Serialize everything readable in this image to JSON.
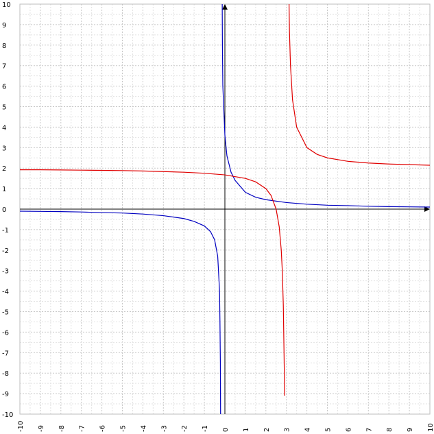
{
  "chart_data": {
    "type": "line",
    "title": "",
    "xlabel": "",
    "ylabel": "",
    "xlim": [
      -10,
      10
    ],
    "ylim": [
      -10,
      10
    ],
    "grid": true,
    "x_ticks": [
      -10,
      -9,
      -8,
      -7,
      -6,
      -5,
      -4,
      -3,
      -2,
      -1,
      0,
      1,
      2,
      3,
      4,
      5,
      6,
      7,
      8,
      9,
      10
    ],
    "y_ticks": [
      -10,
      -9,
      -8,
      -7,
      -6,
      -5,
      -4,
      -3,
      -2,
      -1,
      0,
      1,
      2,
      3,
      4,
      5,
      6,
      7,
      8,
      9,
      10
    ],
    "x_tick_labels": [
      "-10",
      "-9",
      "-8",
      "-7",
      "-6",
      "-5",
      "-4",
      "-3",
      "-2",
      "-1",
      "0",
      "1",
      "2",
      "3",
      "4",
      "5",
      "6",
      "7",
      "8",
      "9",
      "10"
    ],
    "y_tick_labels": [
      "-10",
      "-9",
      "-8",
      "-7",
      "-6",
      "-5",
      "-4",
      "-3",
      "-2",
      "-1",
      "0",
      "1",
      "2",
      "3",
      "4",
      "5",
      "6",
      "7",
      "8",
      "9",
      "10"
    ],
    "series": [
      {
        "color": "#0000c0",
        "vertical_asymptote": -0.17,
        "points": [
          [
            -10,
            -0.1
          ],
          [
            -9,
            -0.11
          ],
          [
            -8,
            -0.12
          ],
          [
            -7,
            -0.14
          ],
          [
            -6,
            -0.17
          ],
          [
            -5,
            -0.19
          ],
          [
            -4,
            -0.24
          ],
          [
            -3,
            -0.32
          ],
          [
            -2,
            -0.46
          ],
          [
            -1.5,
            -0.6
          ],
          [
            -1,
            -0.82
          ],
          [
            -0.7,
            -1.1
          ],
          [
            -0.5,
            -1.5
          ],
          [
            -0.35,
            -2.3
          ],
          [
            -0.26,
            -4.0
          ],
          [
            -0.24,
            -5.5
          ],
          [
            -0.22,
            -7.5
          ],
          [
            -0.21,
            -10
          ],
          [
            -0.13,
            10
          ],
          [
            -0.12,
            8
          ],
          [
            -0.1,
            6
          ],
          [
            0,
            3.6
          ],
          [
            0.1,
            2.6
          ],
          [
            0.3,
            1.8
          ],
          [
            0.5,
            1.4
          ],
          [
            1,
            0.82
          ],
          [
            1.5,
            0.58
          ],
          [
            2,
            0.46
          ],
          [
            3,
            0.32
          ],
          [
            4,
            0.24
          ],
          [
            5,
            0.19
          ],
          [
            6,
            0.17
          ],
          [
            7,
            0.14
          ],
          [
            8,
            0.12
          ],
          [
            9,
            0.11
          ],
          [
            10,
            0.1
          ]
        ]
      },
      {
        "color": "#e00000",
        "vertical_asymptote": 3,
        "points": [
          [
            -10,
            1.92
          ],
          [
            -9,
            1.92
          ],
          [
            -8,
            1.91
          ],
          [
            -7,
            1.9
          ],
          [
            -6,
            1.89
          ],
          [
            -5,
            1.88
          ],
          [
            -4,
            1.86
          ],
          [
            -3,
            1.83
          ],
          [
            -2,
            1.8
          ],
          [
            -1,
            1.75
          ],
          [
            0,
            1.67
          ],
          [
            1,
            1.5
          ],
          [
            1.5,
            1.33
          ],
          [
            2,
            1.0
          ],
          [
            2.25,
            0.67
          ],
          [
            2.5,
            0.0
          ],
          [
            2.65,
            -0.86
          ],
          [
            2.75,
            -2.0
          ],
          [
            2.8,
            -3.0
          ],
          [
            2.85,
            -4.67
          ],
          [
            2.9,
            -8.0
          ],
          [
            2.91,
            -9.1
          ],
          [
            3.09,
            13.1
          ],
          [
            3.1,
            12.0
          ],
          [
            3.15,
            8.67
          ],
          [
            3.2,
            7.0
          ],
          [
            3.3,
            5.33
          ],
          [
            3.5,
            4.0
          ],
          [
            4,
            3.0
          ],
          [
            4.5,
            2.67
          ],
          [
            5,
            2.5
          ],
          [
            6,
            2.33
          ],
          [
            7,
            2.25
          ],
          [
            8,
            2.2
          ],
          [
            9,
            2.17
          ],
          [
            10,
            2.14
          ]
        ]
      }
    ]
  }
}
